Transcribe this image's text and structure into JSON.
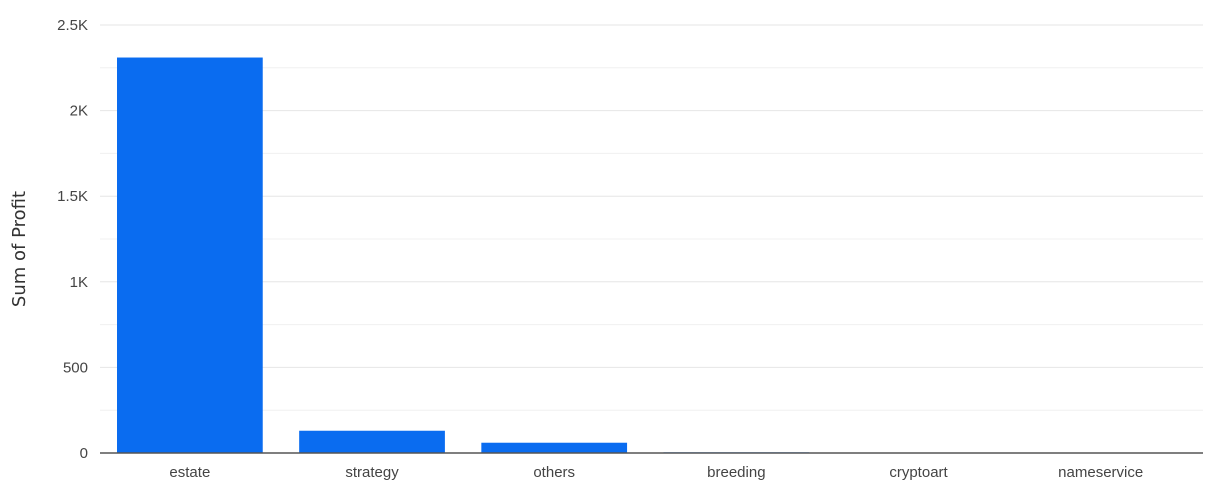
{
  "chart_data": {
    "type": "bar",
    "categories": [
      "estate",
      "strategy",
      "others",
      "breeding",
      "cryptoart",
      "nameservice"
    ],
    "values": [
      2310,
      130,
      60,
      4,
      2,
      1
    ],
    "ylabel": "Sum of Profit",
    "xlabel": "",
    "ylim": [
      0,
      2500
    ],
    "y_ticks": [
      0,
      500,
      1000,
      1500,
      2000,
      2500
    ],
    "y_tick_labels": [
      "0",
      "500",
      "1K",
      "1.5K",
      "2K",
      "2.5K"
    ],
    "grid": true,
    "bar_color": "#0a6cf0",
    "grid_color": "#e6e6e6"
  }
}
